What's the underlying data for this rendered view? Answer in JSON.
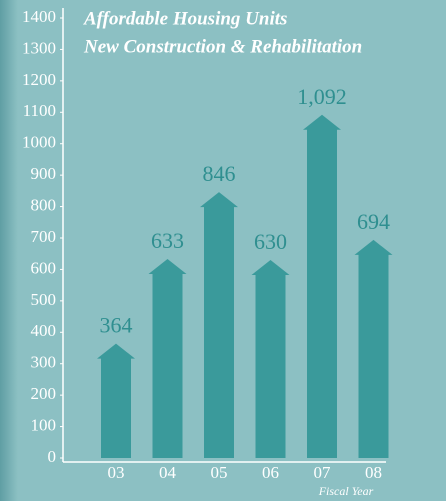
{
  "chart_data": {
    "type": "arrow-bar",
    "title": "Affordable Housing Units",
    "subtitle": "New Construction & Rehabilitation",
    "x_label": "Fiscal Year",
    "categories": [
      "03",
      "04",
      "05",
      "06",
      "07",
      "08"
    ],
    "values": [
      364,
      633,
      846,
      630,
      1092,
      694
    ],
    "value_labels": [
      "364",
      "633",
      "846",
      "630",
      "1,092",
      "694"
    ],
    "color": "#3a9a9b",
    "ylim": [
      0,
      1400
    ],
    "yticks": [
      0,
      100,
      200,
      300,
      400,
      500,
      600,
      700,
      800,
      900,
      1000,
      1100,
      1200,
      1300,
      1400
    ]
  }
}
